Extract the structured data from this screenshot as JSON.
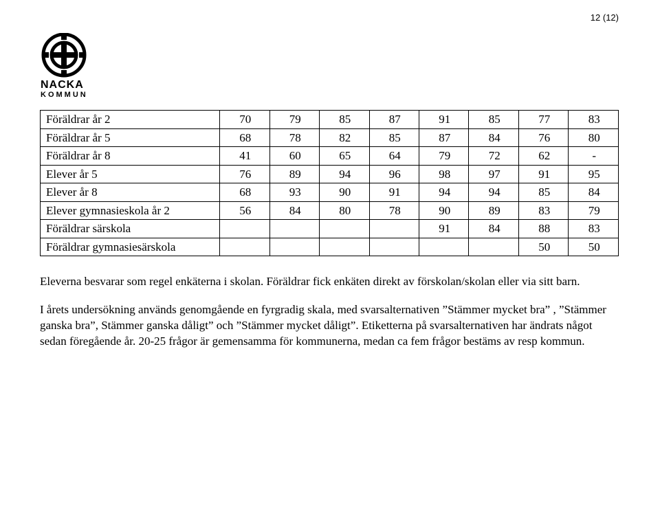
{
  "page_number": "12 (12)",
  "logo_text_top": "NACKA",
  "logo_text_bottom": "KOMMUN",
  "table": {
    "rows": [
      {
        "label": "Föräldrar år 2",
        "cells": [
          "70",
          "79",
          "85",
          "87",
          "91",
          "85",
          "77",
          "83"
        ]
      },
      {
        "label": "Föräldrar år 5",
        "cells": [
          "68",
          "78",
          "82",
          "85",
          "87",
          "84",
          "76",
          "80"
        ]
      },
      {
        "label": "Föräldrar år 8",
        "cells": [
          "41",
          "60",
          "65",
          "64",
          "79",
          "72",
          "62",
          "-"
        ]
      },
      {
        "label": "Elever år 5",
        "cells": [
          "76",
          "89",
          "94",
          "96",
          "98",
          "97",
          "91",
          "95"
        ]
      },
      {
        "label": "Elever år 8",
        "cells": [
          "68",
          "93",
          "90",
          "91",
          "94",
          "94",
          "85",
          "84"
        ]
      },
      {
        "label": "Elever gymnasieskola år 2",
        "cells": [
          "56",
          "84",
          "80",
          "78",
          "90",
          "89",
          "83",
          "79"
        ]
      },
      {
        "label": "Föräldrar särskola",
        "cells": [
          "",
          "",
          "",
          "",
          "91",
          "84",
          "88",
          "83"
        ]
      },
      {
        "label": "Föräldrar gymnasiesärskola",
        "cells": [
          "",
          "",
          "",
          "",
          "",
          "",
          "50",
          "50"
        ]
      }
    ]
  },
  "paragraphs": {
    "p1": "Eleverna besvarar som regel enkäterna i skolan. Föräldrar fick enkäten direkt av förskolan/skolan eller via sitt barn.",
    "p2": "I årets undersökning används genomgående en fyrgradig skala, med svarsalternativen ”Stämmer mycket bra” , ”Stämmer ganska bra”, Stämmer ganska dåligt” och ”Stämmer mycket dåligt”. Etiketterna på svarsalternativen har ändrats något sedan föregående år. 20-25 frågor är gemensamma för kommunerna, medan ca fem frågor bestäms av resp kommun."
  },
  "colors": {
    "text": "#000000",
    "background": "#ffffff",
    "border": "#000000"
  }
}
